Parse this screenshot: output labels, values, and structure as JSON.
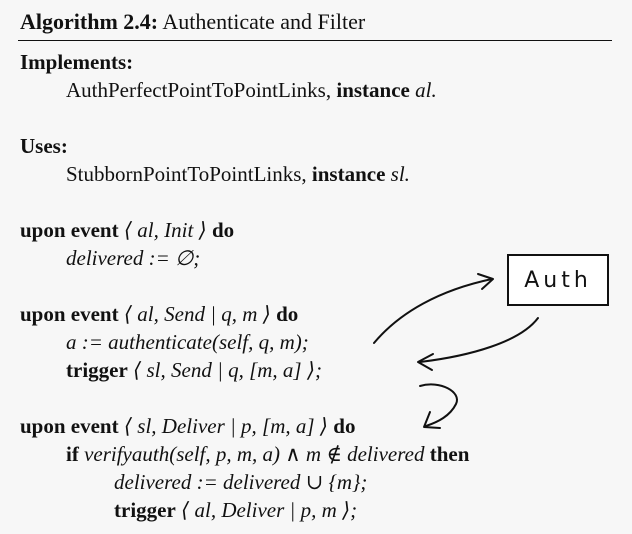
{
  "algorithm": {
    "label": "Algorithm 2.4:",
    "title": "Authenticate and Filter"
  },
  "implements": {
    "heading": "Implements:",
    "name": "AuthPerfectPointToPointLinks,",
    "kw": "instance",
    "inst": "al."
  },
  "uses": {
    "heading": "Uses:",
    "name": "StubbornPointToPointLinks,",
    "kw": "instance",
    "inst": "sl."
  },
  "init_handler": {
    "kw": "upon event",
    "event": "⟨ al, Init ⟩",
    "do": "do",
    "line1": "delivered := ∅;"
  },
  "send_handler": {
    "kw": "upon event",
    "event": "⟨ al, Send | q, m ⟩",
    "do": "do",
    "line1": "a := authenticate(self, q, m);",
    "trigger_kw": "trigger",
    "trigger_event": "⟨ sl, Send | q, [m, a] ⟩;"
  },
  "deliver_handler": {
    "kw": "upon event",
    "event": "⟨ sl, Deliver | p, [m, a] ⟩",
    "do": "do",
    "if_kw": "if",
    "condition": "verifyauth(self, p, m, a) ∧ m ∉ delivered",
    "then_kw": "then",
    "line2": "delivered := delivered ∪ {m};",
    "trigger_kw": "trigger",
    "trigger_event": "⟨ al, Deliver | p, m ⟩;"
  },
  "annotation": {
    "label": "Auth"
  }
}
